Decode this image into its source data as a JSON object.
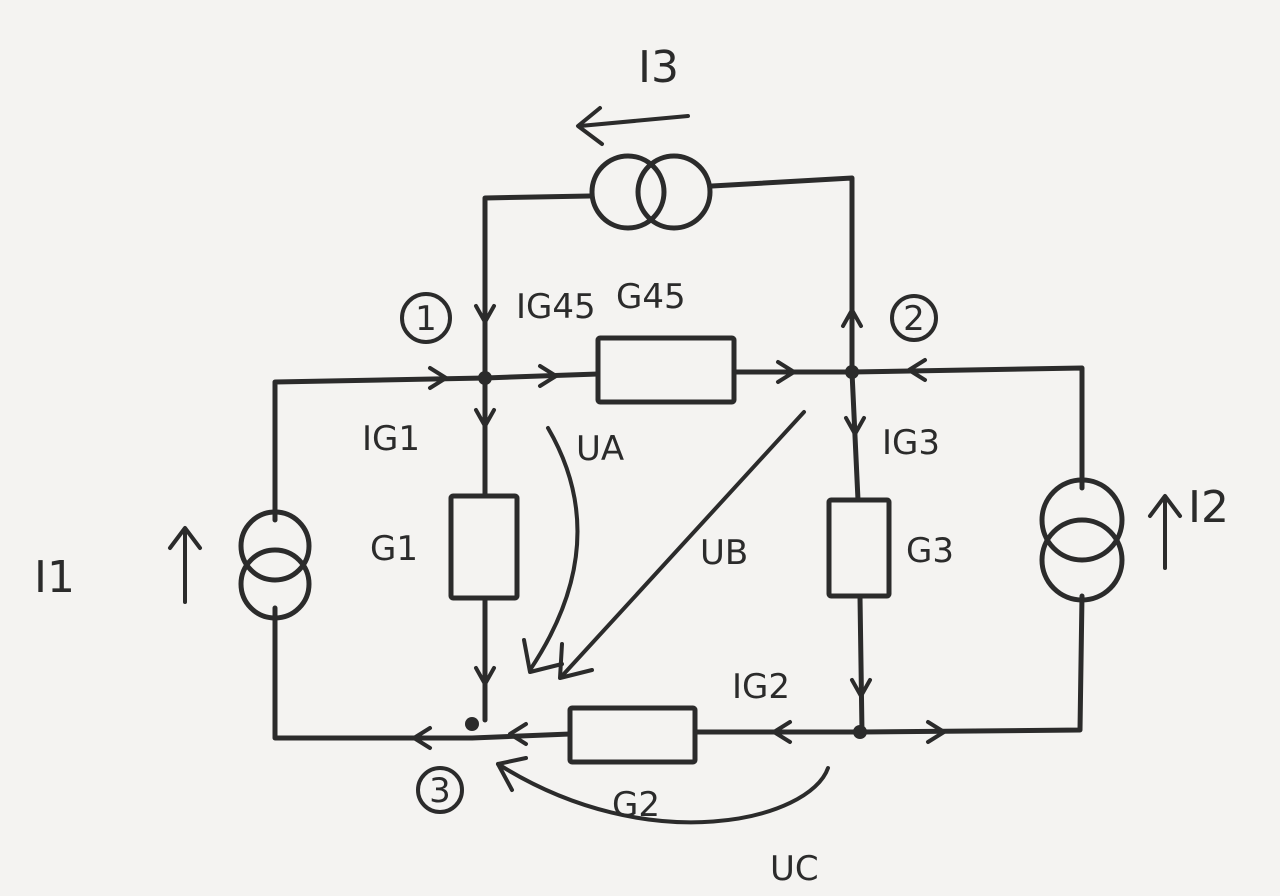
{
  "diagram": {
    "sources": {
      "i1": "I1",
      "i2": "I2",
      "i3": "I3"
    },
    "conductances": {
      "g45": "G45",
      "g1": "G1",
      "g2": "G2",
      "g3": "G3"
    },
    "currents": {
      "ig45": "IG45",
      "ig1": "IG1",
      "ig2": "IG2",
      "ig3": "IG3"
    },
    "voltages": {
      "ua": "UA",
      "ub": "UB",
      "uc": "UC"
    },
    "nodes": {
      "n1": "1",
      "n2": "2",
      "n3": "3"
    }
  }
}
